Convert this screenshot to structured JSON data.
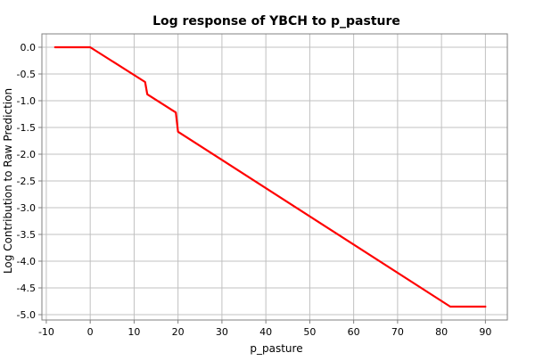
{
  "chart_data": {
    "type": "line",
    "title": "Log response of YBCH to p_pasture",
    "xlabel": "p_pasture",
    "ylabel": "Log Contribution to Raw Prediction",
    "xlim": [
      -11,
      95
    ],
    "ylim": [
      -5.1,
      0.25
    ],
    "x_ticks": [
      -10,
      0,
      10,
      20,
      30,
      40,
      50,
      60,
      70,
      80,
      90
    ],
    "x_tick_labels": [
      "-10",
      "0",
      "10",
      "20",
      "30",
      "40",
      "50",
      "60",
      "70",
      "80",
      "90"
    ],
    "y_ticks": [
      0.0,
      -0.5,
      -1.0,
      -1.5,
      -2.0,
      -2.5,
      -3.0,
      -3.5,
      -4.0,
      -4.5,
      -5.0
    ],
    "y_tick_labels": [
      "0.0",
      "-0.5",
      "-1.0",
      "-1.5",
      "-2.0",
      "-2.5",
      "-3.0",
      "-3.5",
      "-4.0",
      "-4.5",
      "-5.0"
    ],
    "grid": true,
    "series": [
      {
        "color": "#ff0000",
        "x": [
          -8,
          0,
          12.5,
          13,
          19.5,
          20,
          82,
          90
        ],
        "y": [
          0.0,
          0.0,
          -0.65,
          -0.88,
          -1.22,
          -1.58,
          -4.85,
          -4.85
        ]
      }
    ]
  }
}
